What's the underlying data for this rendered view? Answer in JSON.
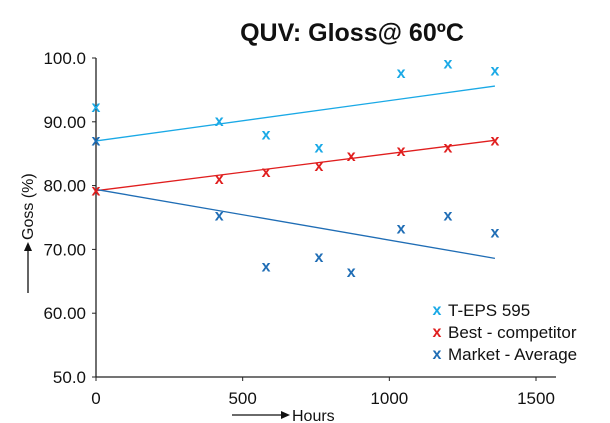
{
  "chart_data": {
    "type": "scatter",
    "title": "QUV: Gloss@ 60ºC",
    "xlabel": "Hours",
    "ylabel": "Goss (%)",
    "xlim": [
      0,
      1500
    ],
    "ylim": [
      50,
      100
    ],
    "x_ticks": [
      "0",
      "500",
      "1000",
      "1500"
    ],
    "y_ticks": [
      "50.0",
      "60.00",
      "70.00",
      "80.00",
      "90.00",
      "100.0"
    ],
    "grid": false,
    "legend_position": "bottom-right",
    "marker_symbol": "x",
    "series": [
      {
        "name": "T-EPS 595",
        "color": "#1aa9e6",
        "x": [
          0,
          420,
          580,
          760,
          1040,
          1200,
          1360
        ],
        "y": [
          92.5,
          90.3,
          88.2,
          86.1,
          97.8,
          99.3,
          98.2
        ],
        "trendline": [
          [
            0,
            87.0
          ],
          [
            1360,
            95.6
          ]
        ]
      },
      {
        "name": "Best - competitor",
        "color": "#e01e1e",
        "x": [
          0,
          420,
          580,
          760,
          870,
          1040,
          1200,
          1360
        ],
        "y": [
          79.4,
          81.2,
          82.3,
          83.2,
          84.8,
          85.6,
          86.1,
          87.2
        ],
        "trendline": [
          [
            0,
            79.2
          ],
          [
            1360,
            87.1
          ]
        ]
      },
      {
        "name": "Market - Average",
        "color": "#1f6db5",
        "x": [
          0,
          420,
          580,
          760,
          870,
          1040,
          1200,
          1360
        ],
        "y": [
          87.2,
          75.5,
          67.5,
          69.0,
          66.6,
          73.4,
          75.5,
          72.8
        ],
        "trendline": [
          [
            0,
            79.4
          ],
          [
            1360,
            68.6
          ]
        ]
      }
    ]
  }
}
